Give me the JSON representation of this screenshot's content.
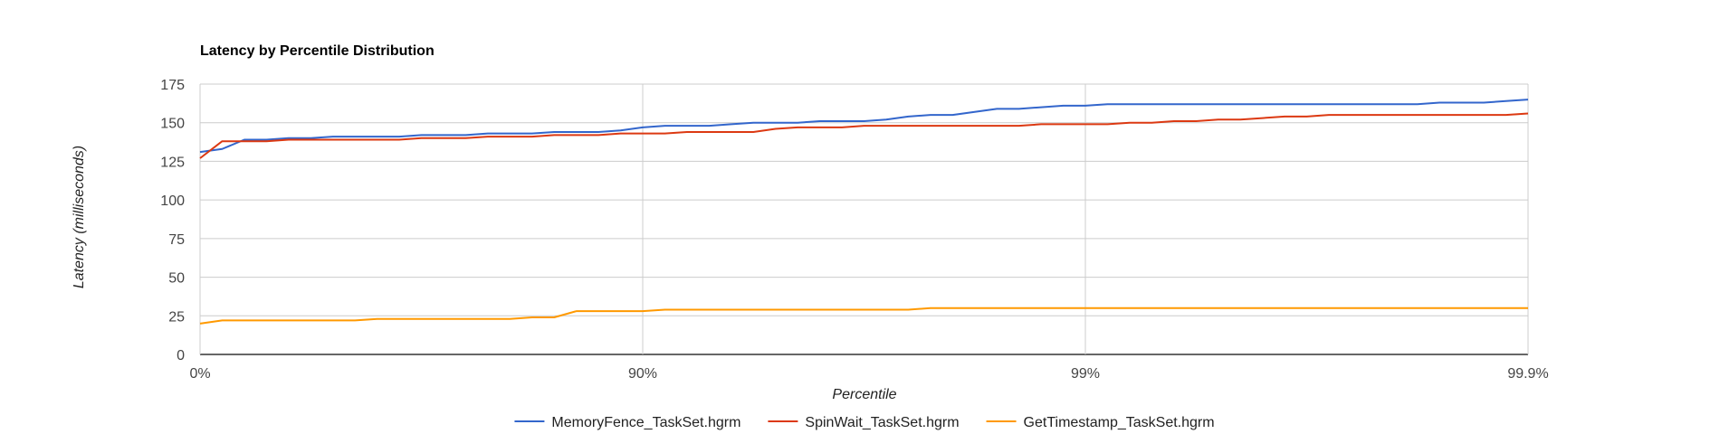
{
  "chart_data": {
    "type": "line",
    "title": "Latency by Percentile Distribution",
    "xlabel": "Percentile",
    "ylabel": "Latency (milliseconds)",
    "ylim": [
      0,
      175
    ],
    "y_ticks": [
      "175",
      "150",
      "125",
      "100",
      "75",
      "50",
      "25",
      "0"
    ],
    "x_ticks": [
      "0%",
      "90%",
      "99%",
      "99.9%"
    ],
    "x_scale": "log-percentile (nines)",
    "xlim_nines": [
      0,
      3
    ],
    "grid": true,
    "legend_position": "bottom",
    "series": [
      {
        "name": "MemoryFence_TaskSet.hgrm",
        "color": "#3366cc",
        "x_nines": [
          0,
          0.05,
          0.1,
          0.15,
          0.2,
          0.25,
          0.3,
          0.35,
          0.4,
          0.45,
          0.5,
          0.55,
          0.6,
          0.65,
          0.7,
          0.75,
          0.8,
          0.85,
          0.9,
          0.95,
          1.0,
          1.05,
          1.1,
          1.15,
          1.2,
          1.25,
          1.3,
          1.35,
          1.4,
          1.45,
          1.5,
          1.55,
          1.6,
          1.65,
          1.7,
          1.75,
          1.8,
          1.85,
          1.9,
          1.95,
          2.0,
          2.05,
          2.1,
          2.15,
          2.2,
          2.25,
          2.3,
          2.35,
          2.4,
          2.45,
          2.5,
          2.55,
          2.6,
          2.65,
          2.7,
          2.75,
          2.8,
          2.85,
          2.9,
          2.95,
          3.0
        ],
        "values": [
          131,
          133,
          139,
          139,
          140,
          140,
          141,
          141,
          141,
          141,
          142,
          142,
          142,
          143,
          143,
          143,
          144,
          144,
          144,
          145,
          147,
          148,
          148,
          148,
          149,
          150,
          150,
          150,
          151,
          151,
          151,
          152,
          154,
          155,
          155,
          157,
          159,
          159,
          160,
          161,
          161,
          162,
          162,
          162,
          162,
          162,
          162,
          162,
          162,
          162,
          162,
          162,
          162,
          162,
          162,
          162,
          163,
          163,
          163,
          164,
          165
        ]
      },
      {
        "name": "SpinWait_TaskSet.hgrm",
        "color": "#dc3912",
        "x_nines": [
          0,
          0.05,
          0.1,
          0.15,
          0.2,
          0.25,
          0.3,
          0.35,
          0.4,
          0.45,
          0.5,
          0.55,
          0.6,
          0.65,
          0.7,
          0.75,
          0.8,
          0.85,
          0.9,
          0.95,
          1.0,
          1.05,
          1.1,
          1.15,
          1.2,
          1.25,
          1.3,
          1.35,
          1.4,
          1.45,
          1.5,
          1.55,
          1.6,
          1.65,
          1.7,
          1.75,
          1.8,
          1.85,
          1.9,
          1.95,
          2.0,
          2.05,
          2.1,
          2.15,
          2.2,
          2.25,
          2.3,
          2.35,
          2.4,
          2.45,
          2.5,
          2.55,
          2.6,
          2.65,
          2.7,
          2.75,
          2.8,
          2.85,
          2.9,
          2.95,
          3.0
        ],
        "values": [
          127,
          138,
          138,
          138,
          139,
          139,
          139,
          139,
          139,
          139,
          140,
          140,
          140,
          141,
          141,
          141,
          142,
          142,
          142,
          143,
          143,
          143,
          144,
          144,
          144,
          144,
          146,
          147,
          147,
          147,
          148,
          148,
          148,
          148,
          148,
          148,
          148,
          148,
          149,
          149,
          149,
          149,
          150,
          150,
          151,
          151,
          152,
          152,
          153,
          154,
          154,
          155,
          155,
          155,
          155,
          155,
          155,
          155,
          155,
          155,
          156
        ]
      },
      {
        "name": "GetTimestamp_TaskSet.hgrm",
        "color": "#ff9900",
        "x_nines": [
          0,
          0.05,
          0.1,
          0.15,
          0.2,
          0.25,
          0.3,
          0.35,
          0.4,
          0.45,
          0.5,
          0.55,
          0.6,
          0.65,
          0.7,
          0.75,
          0.8,
          0.85,
          0.9,
          0.95,
          1.0,
          1.05,
          1.1,
          1.15,
          1.2,
          1.25,
          1.3,
          1.35,
          1.4,
          1.45,
          1.5,
          1.55,
          1.6,
          1.65,
          1.7,
          1.75,
          1.8,
          1.85,
          1.9,
          1.95,
          2.0,
          2.05,
          2.1,
          2.15,
          2.2,
          2.25,
          2.3,
          2.35,
          2.4,
          2.45,
          2.5,
          2.55,
          2.6,
          2.65,
          2.7,
          2.75,
          2.8,
          2.85,
          2.9,
          2.95,
          3.0
        ],
        "values": [
          20,
          22,
          22,
          22,
          22,
          22,
          22,
          22,
          23,
          23,
          23,
          23,
          23,
          23,
          23,
          24,
          24,
          28,
          28,
          28,
          28,
          29,
          29,
          29,
          29,
          29,
          29,
          29,
          29,
          29,
          29,
          29,
          29,
          30,
          30,
          30,
          30,
          30,
          30,
          30,
          30,
          30,
          30,
          30,
          30,
          30,
          30,
          30,
          30,
          30,
          30,
          30,
          30,
          30,
          30,
          30,
          30,
          30,
          30,
          30,
          30
        ]
      }
    ]
  }
}
